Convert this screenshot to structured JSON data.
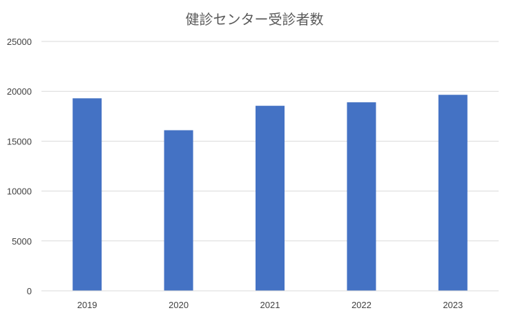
{
  "chart_data": {
    "type": "bar",
    "title": "健診センター受診者数",
    "xlabel": "",
    "ylabel": "",
    "categories": [
      "2019",
      "2020",
      "2021",
      "2022",
      "2023"
    ],
    "values": [
      19300,
      16100,
      18550,
      18900,
      19650
    ],
    "ylim": [
      0,
      25000
    ],
    "yticks": [
      "0",
      "5000",
      "10000",
      "15000",
      "20000",
      "25000"
    ],
    "grid": true,
    "legend": "none",
    "bar_color": "#4472C4",
    "grid_color": "#D9D9D9",
    "label_color": "#404040"
  }
}
